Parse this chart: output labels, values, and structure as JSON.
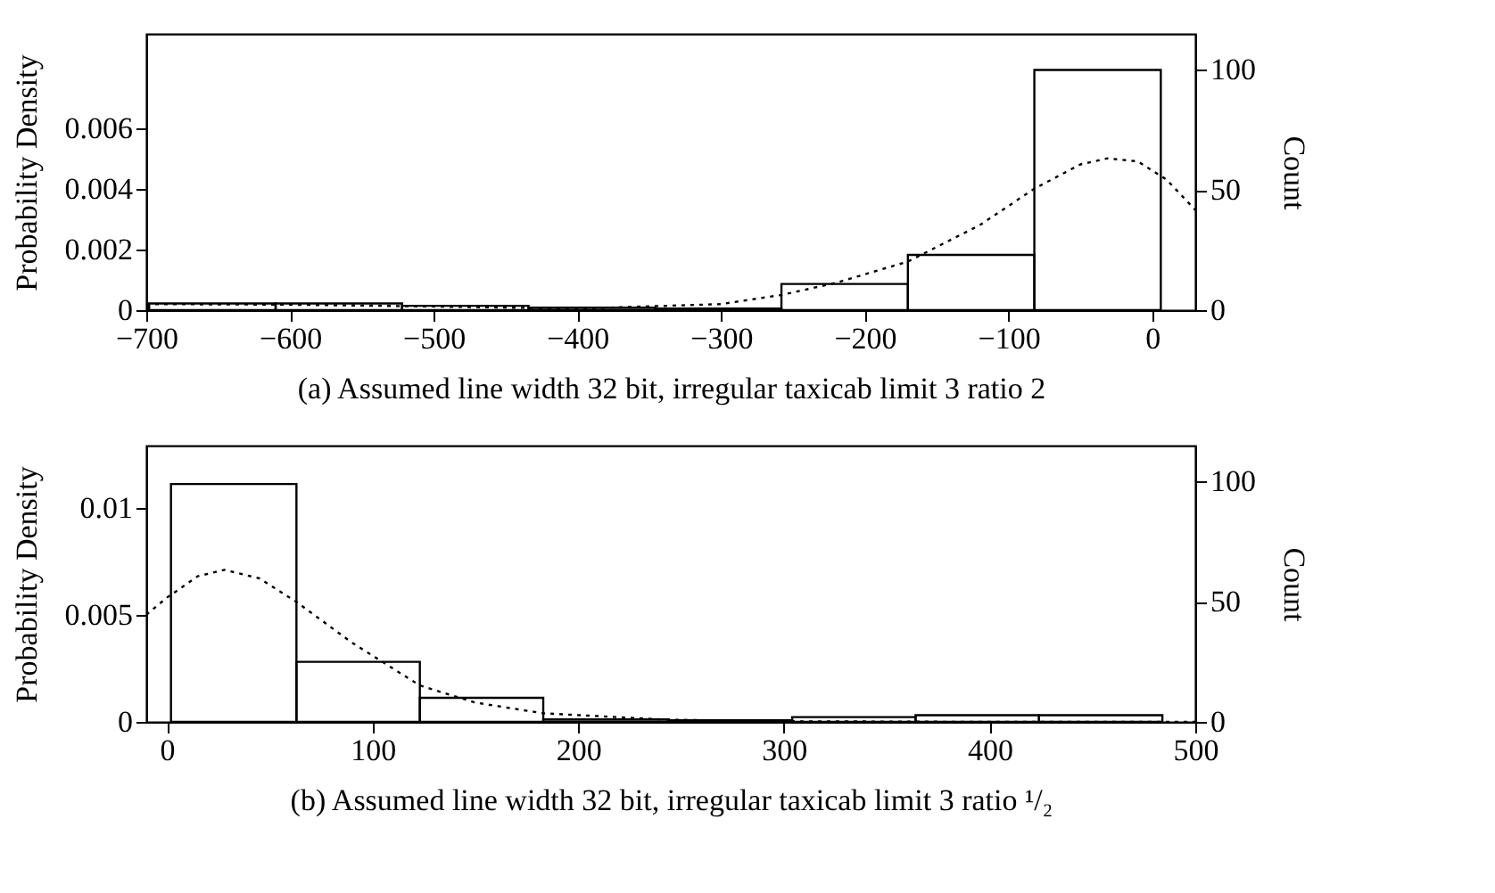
{
  "chart_data": [
    {
      "type": "histogram",
      "xlabel": "(a) Assumed line width 32 bit, irregular taxicab limit 3 ratio 2",
      "ylabel": "Probability Density",
      "y2label": "Count",
      "xlim": [
        -700,
        30
      ],
      "xticks": [
        -700,
        -600,
        -500,
        -400,
        -300,
        -200,
        -100,
        0
      ],
      "ylim": [
        0,
        0.0091
      ],
      "yticks": [
        0,
        0.002,
        0.004,
        0.006
      ],
      "y2lim": [
        0,
        115
      ],
      "y2ticks": [
        0,
        50,
        100
      ],
      "grid": false,
      "series": [
        {
          "axis": "y2",
          "color": "#000000",
          "bins": [
            -698,
            -610,
            -522,
            -434,
            -346,
            -258,
            -170,
            -82,
            6
          ],
          "values": [
            2.8,
            2.8,
            1.8,
            1,
            0.7,
            10.9,
            23,
            100
          ]
        },
        {
          "type": "line",
          "axis": "y",
          "color": "#000000",
          "line_style": "dotted",
          "x": [
            -700,
            -600,
            -500,
            -400,
            -300,
            -258,
            -220,
            -170,
            -120,
            -82,
            -50,
            -31,
            -10,
            10,
            30
          ],
          "values": [
            0.0002,
            0.00018,
            0.00012,
            5e-05,
            0.0002,
            0.0005,
            0.0009,
            0.0016,
            0.0028,
            0.004,
            0.0048,
            0.005,
            0.0049,
            0.0043,
            0.0033
          ]
        }
      ]
    },
    {
      "type": "histogram",
      "xlabel": "(b) Assumed line width 32 bit, irregular taxicab limit 3 ratio ¹/₂",
      "ylabel": "Probability Density",
      "y2label": "Count",
      "xlim": [
        -10,
        500
      ],
      "xticks": [
        0,
        100,
        200,
        300,
        400,
        500
      ],
      "ylim": [
        0,
        0.0129
      ],
      "yticks": [
        0,
        0.005,
        0.01
      ],
      "y2lim": [
        0,
        115
      ],
      "y2ticks": [
        0,
        50,
        100
      ],
      "grid": false,
      "series": [
        {
          "axis": "y2",
          "color": "#000000",
          "bins": [
            2,
            63,
            123,
            183,
            244,
            304,
            364,
            424,
            484
          ],
          "values": [
            99,
            25,
            10,
            1,
            0.7,
            2,
            2.8,
            2.8
          ]
        },
        {
          "type": "line",
          "axis": "y",
          "color": "#000000",
          "line_style": "dotted",
          "x": [
            -10,
            0,
            15,
            28,
            45,
            63,
            90,
            123,
            150,
            183,
            244,
            300,
            400,
            500
          ],
          "values": [
            0.005,
            0.0058,
            0.0068,
            0.0071,
            0.0067,
            0.0056,
            0.0037,
            0.0017,
            0.0009,
            0.0004,
            0.0001,
            3e-05,
            0,
            0
          ]
        }
      ]
    }
  ]
}
